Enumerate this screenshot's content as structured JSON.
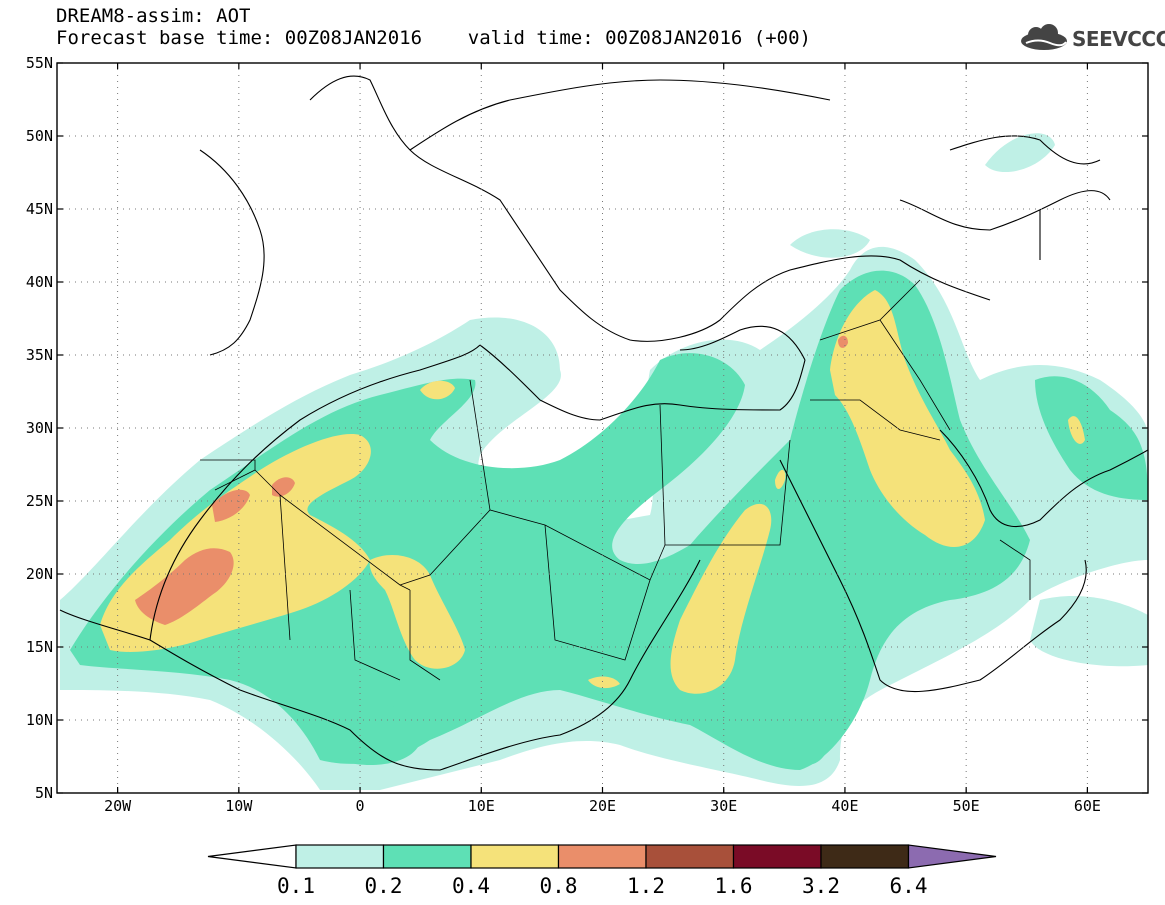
{
  "title": {
    "line1": "DREAM8-assim: AOT",
    "line2": "Forecast base time: 00Z08JAN2016    valid time: 00Z08JAN2016 (+00)"
  },
  "logo": {
    "text": "SEEVCCC",
    "icon": "cloud-icon"
  },
  "map": {
    "lon_range": [
      -25,
      65
    ],
    "lat_range": [
      5,
      55
    ],
    "lat_ticks": [
      "55N",
      "50N",
      "45N",
      "40N",
      "35N",
      "30N",
      "25N",
      "20N",
      "15N",
      "10N",
      "5N"
    ],
    "lon_ticks": [
      "20W",
      "10W",
      "0",
      "10E",
      "20E",
      "30E",
      "40E",
      "50E",
      "60E"
    ],
    "grid": "dotted"
  },
  "legend": {
    "colors": [
      "#ffffff",
      "#bff0e6",
      "#5ee0b5",
      "#f5e27a",
      "#ea8e6a",
      "#a8503a",
      "#7a0b26",
      "#3e2a17",
      "#8c6bb0"
    ],
    "labels": [
      "0.1",
      "0.2",
      "0.4",
      "0.8",
      "1.2",
      "1.6",
      "3.2",
      "6.4"
    ]
  },
  "colors": {
    "c01": "#bff0e6",
    "c02": "#5ee0b5",
    "c04": "#f5e27a",
    "c08": "#ea8e6a"
  }
}
